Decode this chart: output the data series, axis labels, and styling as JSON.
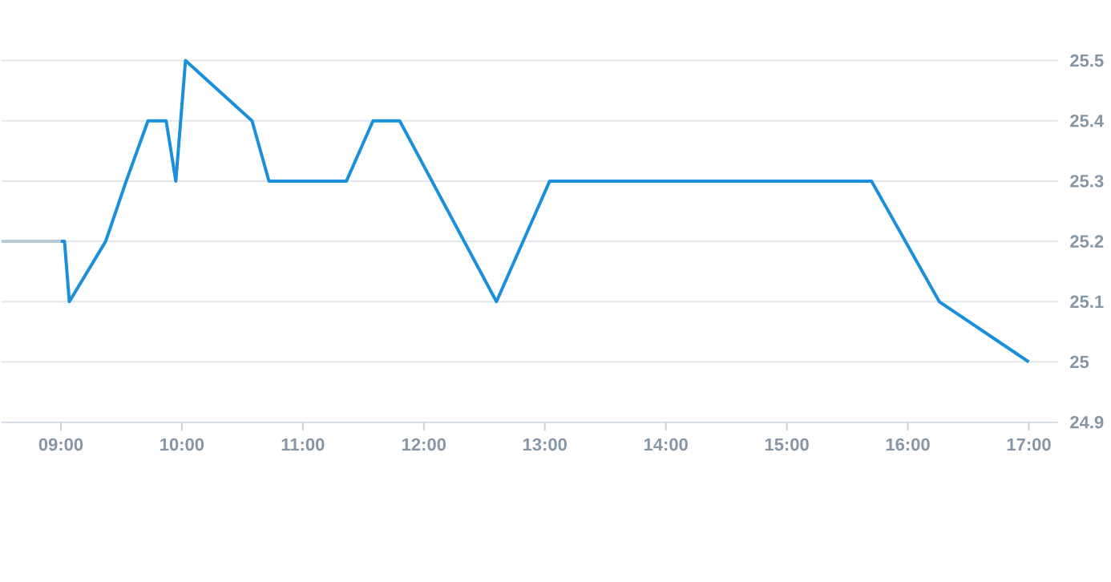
{
  "chart_data": {
    "type": "line",
    "xlim": [
      8.51,
      17.24
    ],
    "ylim": [
      24.9,
      25.5
    ],
    "xticks": [
      {
        "value": 9,
        "label": "09:00"
      },
      {
        "value": 10,
        "label": "10:00"
      },
      {
        "value": 11,
        "label": "11:00"
      },
      {
        "value": 12,
        "label": "12:00"
      },
      {
        "value": 13,
        "label": "13:00"
      },
      {
        "value": 14,
        "label": "14:00"
      },
      {
        "value": 15,
        "label": "15:00"
      },
      {
        "value": 16,
        "label": "16:00"
      },
      {
        "value": 17,
        "label": "17:00"
      }
    ],
    "yticks": [
      24.9,
      25,
      25.1,
      25.2,
      25.3,
      25.4,
      25.5
    ],
    "grid": "y",
    "marker": "none",
    "line_style": "solid",
    "series": [
      {
        "color": "#b9c8d2",
        "x": [
          8.51,
          9.0
        ],
        "values": [
          25.2,
          25.2
        ]
      },
      {
        "color": "#1a8fdc",
        "x": [
          9.0,
          9.03,
          9.07,
          9.37,
          9.54,
          9.72,
          9.87,
          9.95,
          10.03,
          10.58,
          10.72,
          11.36,
          11.58,
          11.8,
          12.6,
          13.04,
          15.7,
          16.26,
          17.0
        ],
        "values": [
          25.2,
          25.2,
          25.1,
          25.2,
          25.3,
          25.4,
          25.4,
          25.3,
          25.5,
          25.4,
          25.3,
          25.3,
          25.4,
          25.4,
          25.1,
          25.3,
          25.3,
          25.1,
          25.0
        ]
      }
    ]
  }
}
